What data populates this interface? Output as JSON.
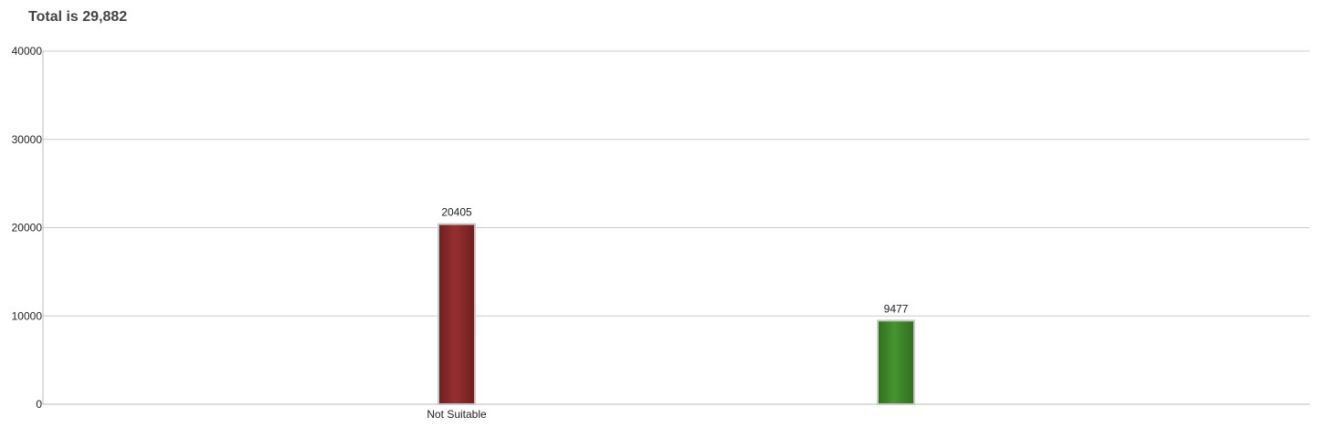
{
  "title": "Total is 29,882",
  "chart_data": {
    "type": "bar",
    "categories": [
      "Not Suitable",
      ""
    ],
    "values": [
      20405,
      9477
    ],
    "data_labels": [
      "20405",
      "9477"
    ],
    "colors": [
      "#8b2a2c",
      "#3f8a2a"
    ],
    "y_ticks": [
      0,
      10000,
      20000,
      30000,
      40000
    ],
    "ylim": [
      0,
      40000
    ],
    "grid": true,
    "legend": "none"
  }
}
